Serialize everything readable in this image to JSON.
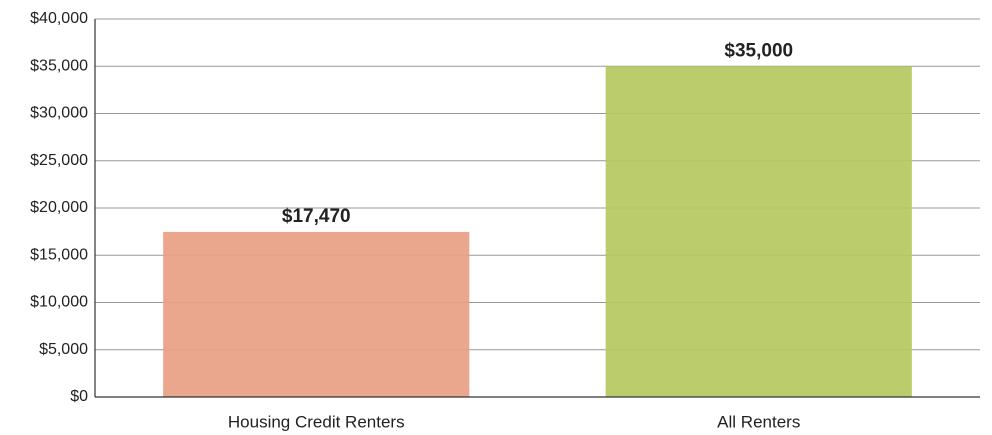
{
  "chart_data": {
    "type": "bar",
    "categories": [
      "Housing Credit Renters",
      "All Renters"
    ],
    "values": [
      17470,
      35000
    ],
    "value_labels": [
      "$17,470",
      "$35,000"
    ],
    "colors": [
      "#e8a083",
      "#b4c85e"
    ],
    "ylim": [
      0,
      40000
    ],
    "yticks": [
      {
        "value": 0,
        "label": "$0"
      },
      {
        "value": 5000,
        "label": "$5,000"
      },
      {
        "value": 10000,
        "label": "$10,000"
      },
      {
        "value": 15000,
        "label": "$15,000"
      },
      {
        "value": 20000,
        "label": "$20,000"
      },
      {
        "value": 25000,
        "label": "$25,000"
      },
      {
        "value": 30000,
        "label": "$30,000"
      },
      {
        "value": 35000,
        "label": "$35,000"
      },
      {
        "value": 40000,
        "label": "$40,000"
      }
    ],
    "grid": true
  }
}
